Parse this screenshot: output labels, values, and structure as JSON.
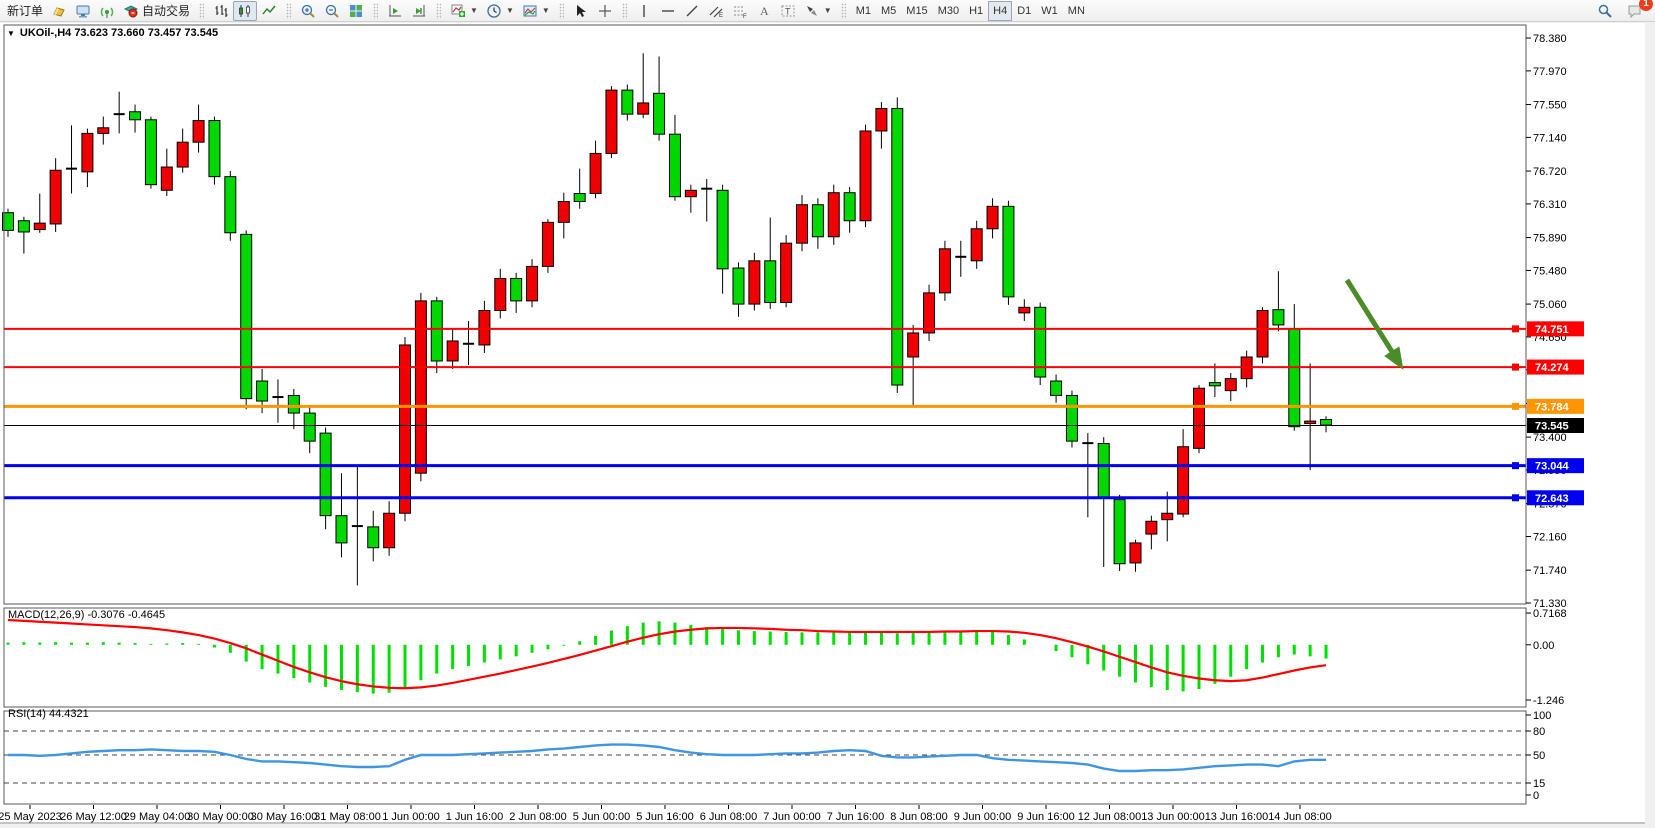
{
  "toolbar": {
    "new_order_label": "新订单",
    "autotrade_label": "自动交易",
    "left_icons": [
      "gold-ingot-icon",
      "terminal-icon",
      "signal-icon",
      "autotrade-icon"
    ],
    "chart_type_icons": [
      "bar-chart-icon",
      "candlestick-icon",
      "line-chart-icon"
    ],
    "zoom_icons": [
      "zoom-in-icon",
      "zoom-out-icon",
      "tile-windows-icon"
    ],
    "shift_icons": [
      "chart-shift-icon",
      "auto-scroll-icon"
    ],
    "object_icons": [
      "add-indicator-icon",
      "periods-clock-icon",
      "templates-icon"
    ],
    "drawing_icons": [
      "cursor-icon",
      "crosshair-icon",
      "vertical-line-icon",
      "horizontal-line-icon",
      "trendline-icon",
      "equidistant-channel-icon",
      "fibonacci-icon",
      "text-icon",
      "text-label-icon",
      "arrows-icon"
    ],
    "timeframes": [
      "M1",
      "M5",
      "M15",
      "M30",
      "H1",
      "H4",
      "D1",
      "W1",
      "MN"
    ],
    "active_timeframe": "H4",
    "notification_count": "1"
  },
  "window": {
    "title": "UKOil-,H4  73.623 73.660 73.457 73.545"
  },
  "chart_data": {
    "type": "candlestick",
    "symbol": "UKOil",
    "timeframe": "H4",
    "ohlc_current": {
      "open": 73.623,
      "high": 73.66,
      "low": 73.457,
      "close": 73.545
    },
    "colors": {
      "bull_fill": "#f00000",
      "bear_fill": "#00d800",
      "candle_border": "#000000",
      "macd_hist": "#00e000",
      "macd_signal": "#ff0000",
      "rsi_line": "#3f95e0",
      "arrow": "#4a8c28"
    },
    "price_axis": {
      "ticks": [
        78.38,
        77.97,
        77.55,
        77.14,
        76.72,
        76.31,
        75.89,
        75.48,
        75.06,
        74.65,
        74.24,
        73.82,
        73.4,
        72.99,
        72.57,
        72.16,
        71.74,
        71.33
      ],
      "range": [
        71.33,
        78.38
      ]
    },
    "hlines": [
      {
        "price": 74.751,
        "label": "74.751",
        "color": "#ff0000",
        "width": 2
      },
      {
        "price": 74.274,
        "label": "74.274",
        "color": "#ff0000",
        "width": 2
      },
      {
        "price": 73.784,
        "label": "73.784",
        "color": "#ff9500",
        "width": 3
      },
      {
        "price": 73.545,
        "label": "73.545",
        "color": "#000000",
        "width": 1
      },
      {
        "price": 73.044,
        "label": "73.044",
        "color": "#0000ee",
        "width": 3
      },
      {
        "price": 72.643,
        "label": "72.643",
        "color": "#0000ee",
        "width": 3
      }
    ],
    "time_labels": [
      "25 May 2023",
      "26 May 12:00",
      "29 May 04:00",
      "30 May 00:00",
      "30 May 16:00",
      "31 May 08:00",
      "1 Jun 00:00",
      "1 Jun 16:00",
      "2 Jun 08:00",
      "5 Jun 00:00",
      "5 Jun 16:00",
      "6 Jun 08:00",
      "7 Jun 00:00",
      "7 Jun 16:00",
      "8 Jun 08:00",
      "9 Jun 00:00",
      "9 Jun 16:00",
      "12 Jun 08:00",
      "13 Jun 00:00",
      "13 Jun 16:00",
      "14 Jun 08:00"
    ],
    "candles": [
      [
        76.2,
        76.25,
        75.9,
        75.98,
        "g"
      ],
      [
        76.1,
        76.15,
        75.69,
        75.96,
        "g"
      ],
      [
        75.99,
        76.44,
        75.95,
        76.07,
        "r"
      ],
      [
        76.06,
        76.88,
        75.96,
        76.73,
        "r"
      ],
      [
        76.74,
        77.29,
        76.44,
        76.76,
        "k"
      ],
      [
        76.71,
        77.25,
        76.52,
        77.19,
        "r"
      ],
      [
        77.19,
        77.4,
        77.05,
        77.26,
        "r"
      ],
      [
        77.44,
        77.71,
        77.19,
        77.42,
        "k"
      ],
      [
        77.46,
        77.55,
        77.2,
        77.36,
        "g"
      ],
      [
        77.36,
        77.4,
        76.5,
        76.55,
        "g"
      ],
      [
        76.48,
        77.0,
        76.41,
        76.77,
        "r"
      ],
      [
        76.77,
        77.25,
        76.7,
        77.08,
        "r"
      ],
      [
        77.08,
        77.55,
        76.95,
        77.35,
        "r"
      ],
      [
        77.35,
        77.4,
        76.55,
        76.65,
        "g"
      ],
      [
        76.65,
        76.72,
        75.85,
        75.95,
        "g"
      ],
      [
        75.93,
        75.98,
        73.75,
        73.88,
        "g"
      ],
      [
        74.1,
        74.25,
        73.7,
        73.85,
        "g"
      ],
      [
        73.88,
        74.12,
        73.58,
        73.92,
        "k"
      ],
      [
        73.92,
        74.0,
        73.5,
        73.7,
        "g"
      ],
      [
        73.7,
        73.8,
        73.2,
        73.35,
        "g"
      ],
      [
        73.45,
        73.52,
        72.25,
        72.42,
        "g"
      ],
      [
        72.42,
        72.95,
        71.9,
        72.08,
        "g"
      ],
      [
        72.3,
        73.05,
        71.55,
        72.28,
        "k"
      ],
      [
        72.28,
        72.48,
        71.85,
        72.02,
        "g"
      ],
      [
        72.02,
        72.6,
        71.92,
        72.45,
        "r"
      ],
      [
        72.45,
        74.65,
        72.35,
        74.55,
        "r"
      ],
      [
        72.95,
        75.2,
        72.85,
        75.1,
        "r"
      ],
      [
        75.1,
        75.15,
        74.2,
        74.35,
        "g"
      ],
      [
        74.35,
        74.75,
        74.25,
        74.6,
        "r"
      ],
      [
        74.58,
        74.85,
        74.3,
        74.55,
        "k"
      ],
      [
        74.55,
        75.1,
        74.45,
        74.98,
        "r"
      ],
      [
        74.98,
        75.5,
        74.88,
        75.38,
        "r"
      ],
      [
        75.38,
        75.45,
        74.95,
        75.1,
        "g"
      ],
      [
        75.1,
        75.62,
        75.02,
        75.53,
        "r"
      ],
      [
        75.53,
        76.12,
        75.45,
        76.08,
        "r"
      ],
      [
        76.08,
        76.45,
        75.88,
        76.34,
        "r"
      ],
      [
        76.34,
        76.75,
        76.25,
        76.44,
        "g"
      ],
      [
        76.44,
        77.1,
        76.38,
        76.94,
        "r"
      ],
      [
        76.94,
        77.78,
        76.88,
        77.73,
        "r"
      ],
      [
        77.73,
        77.8,
        77.35,
        77.43,
        "g"
      ],
      [
        77.43,
        78.19,
        77.38,
        77.57,
        "r"
      ],
      [
        77.69,
        78.15,
        77.1,
        77.18,
        "g"
      ],
      [
        77.18,
        77.42,
        76.35,
        76.4,
        "g"
      ],
      [
        76.4,
        76.55,
        76.2,
        76.48,
        "r"
      ],
      [
        76.5,
        76.62,
        76.09,
        76.5,
        "k"
      ],
      [
        76.48,
        76.55,
        75.19,
        75.5,
        "g"
      ],
      [
        75.51,
        75.58,
        74.9,
        75.06,
        "g"
      ],
      [
        75.06,
        75.7,
        74.98,
        75.6,
        "r"
      ],
      [
        75.6,
        76.14,
        75.0,
        75.08,
        "g"
      ],
      [
        75.08,
        75.92,
        75.02,
        75.82,
        "r"
      ],
      [
        75.82,
        76.42,
        75.72,
        76.3,
        "r"
      ],
      [
        76.3,
        76.38,
        75.75,
        75.9,
        "g"
      ],
      [
        75.9,
        76.55,
        75.8,
        76.45,
        "r"
      ],
      [
        76.45,
        76.52,
        75.95,
        76.1,
        "g"
      ],
      [
        76.1,
        77.3,
        76.02,
        77.22,
        "r"
      ],
      [
        77.22,
        77.58,
        77.0,
        77.5,
        "r"
      ],
      [
        77.5,
        77.64,
        73.95,
        74.05,
        "g"
      ],
      [
        74.4,
        74.8,
        73.78,
        74.7,
        "r"
      ],
      [
        74.7,
        75.3,
        74.6,
        75.2,
        "r"
      ],
      [
        75.2,
        75.85,
        75.1,
        75.75,
        "r"
      ],
      [
        75.7,
        75.85,
        75.4,
        75.6,
        "k"
      ],
      [
        75.6,
        76.1,
        75.5,
        76.0,
        "r"
      ],
      [
        76.0,
        76.38,
        75.88,
        76.28,
        "r"
      ],
      [
        76.28,
        76.35,
        75.05,
        75.15,
        "g"
      ],
      [
        74.95,
        75.12,
        74.85,
        75.02,
        "r"
      ],
      [
        75.02,
        75.08,
        74.05,
        74.15,
        "g"
      ],
      [
        74.1,
        74.18,
        73.83,
        73.92,
        "g"
      ],
      [
        73.92,
        73.98,
        73.27,
        73.35,
        "g"
      ],
      [
        73.35,
        73.45,
        72.4,
        73.3,
        "k"
      ],
      [
        73.32,
        73.4,
        71.78,
        72.64,
        "g"
      ],
      [
        72.62,
        72.68,
        71.73,
        71.82,
        "g"
      ],
      [
        71.83,
        72.12,
        71.72,
        72.08,
        "r"
      ],
      [
        72.19,
        72.42,
        72.0,
        72.35,
        "r"
      ],
      [
        72.37,
        72.72,
        72.1,
        72.45,
        "r"
      ],
      [
        72.44,
        73.5,
        72.4,
        73.28,
        "r"
      ],
      [
        73.26,
        74.05,
        73.2,
        74.01,
        "r"
      ],
      [
        74.08,
        74.32,
        73.9,
        74.04,
        "g"
      ],
      [
        73.98,
        74.2,
        73.85,
        74.13,
        "r"
      ],
      [
        74.13,
        74.48,
        74.02,
        74.4,
        "r"
      ],
      [
        74.4,
        75.02,
        74.32,
        74.98,
        "r"
      ],
      [
        74.99,
        75.47,
        74.72,
        74.8,
        "g"
      ],
      [
        74.75,
        75.06,
        73.48,
        73.53,
        "g"
      ],
      [
        73.57,
        74.32,
        72.99,
        73.6,
        "r"
      ],
      [
        73.62,
        73.66,
        73.46,
        73.55,
        "g"
      ]
    ],
    "macd": {
      "label": "MACD(12,26,9) -0.3076 -0.4645",
      "main_value": -0.3076,
      "signal_value": -0.4645,
      "axis_ticks": [
        0.7168,
        0.0,
        -1.246
      ],
      "histogram": [
        0.05,
        0.06,
        0.05,
        0.06,
        0.05,
        0.05,
        0.06,
        0.05,
        0.04,
        0.02,
        0.03,
        0.04,
        0.02,
        -0.06,
        -0.18,
        -0.38,
        -0.55,
        -0.65,
        -0.75,
        -0.85,
        -0.95,
        -1.02,
        -1.07,
        -1.1,
        -1.08,
        -0.98,
        -0.8,
        -0.65,
        -0.55,
        -0.48,
        -0.4,
        -0.33,
        -0.26,
        -0.18,
        -0.1,
        -0.02,
        0.08,
        0.2,
        0.32,
        0.42,
        0.5,
        0.53,
        0.5,
        0.45,
        0.4,
        0.36,
        0.33,
        0.31,
        0.3,
        0.29,
        0.28,
        0.28,
        0.29,
        0.3,
        0.31,
        0.3,
        0.26,
        0.29,
        0.3,
        0.31,
        0.32,
        0.33,
        0.3,
        0.22,
        0.12,
        0.0,
        -0.14,
        -0.28,
        -0.44,
        -0.58,
        -0.72,
        -0.85,
        -0.95,
        -1.02,
        -1.05,
        -1.0,
        -0.88,
        -0.72,
        -0.55,
        -0.4,
        -0.28,
        -0.22,
        -0.26,
        -0.31
      ],
      "signal": [
        0.56,
        0.54,
        0.52,
        0.5,
        0.48,
        0.46,
        0.44,
        0.42,
        0.4,
        0.37,
        0.33,
        0.28,
        0.22,
        0.14,
        0.04,
        -0.08,
        -0.22,
        -0.36,
        -0.5,
        -0.62,
        -0.73,
        -0.82,
        -0.89,
        -0.94,
        -0.97,
        -0.98,
        -0.96,
        -0.92,
        -0.86,
        -0.79,
        -0.72,
        -0.65,
        -0.57,
        -0.49,
        -0.41,
        -0.32,
        -0.23,
        -0.13,
        -0.03,
        0.07,
        0.16,
        0.24,
        0.3,
        0.34,
        0.37,
        0.38,
        0.38,
        0.37,
        0.36,
        0.34,
        0.33,
        0.31,
        0.3,
        0.29,
        0.29,
        0.29,
        0.29,
        0.29,
        0.29,
        0.3,
        0.3,
        0.31,
        0.31,
        0.3,
        0.27,
        0.22,
        0.15,
        0.06,
        -0.04,
        -0.15,
        -0.27,
        -0.39,
        -0.51,
        -0.62,
        -0.7,
        -0.76,
        -0.8,
        -0.82,
        -0.8,
        -0.74,
        -0.66,
        -0.58,
        -0.51,
        -0.46
      ]
    },
    "rsi": {
      "label": "RSI(14) 44.4321",
      "value": 44.4321,
      "axis_ticks": [
        100,
        80,
        50,
        15,
        0
      ],
      "dashed_levels": [
        80,
        50,
        15
      ],
      "values": [
        50,
        50,
        49,
        50,
        52,
        54,
        55,
        56,
        56,
        57,
        56,
        55,
        55,
        54,
        50,
        45,
        42,
        42,
        41,
        40,
        38,
        36,
        35,
        35,
        36,
        44,
        50,
        50,
        50,
        51,
        52,
        53,
        54,
        55,
        57,
        58,
        60,
        62,
        63,
        63,
        62,
        60,
        56,
        53,
        51,
        50,
        50,
        50,
        51,
        52,
        52,
        53,
        55,
        56,
        55,
        49,
        47,
        47,
        48,
        49,
        50,
        50,
        46,
        44,
        43,
        42,
        41,
        40,
        38,
        33,
        30,
        30,
        31,
        31,
        32,
        34,
        36,
        37,
        38,
        38,
        36,
        42,
        44,
        44
      ]
    },
    "annotation_arrow": {
      "from": [
        1347,
        280
      ],
      "to": [
        1396,
        358
      ],
      "color": "#4a8c28"
    }
  }
}
